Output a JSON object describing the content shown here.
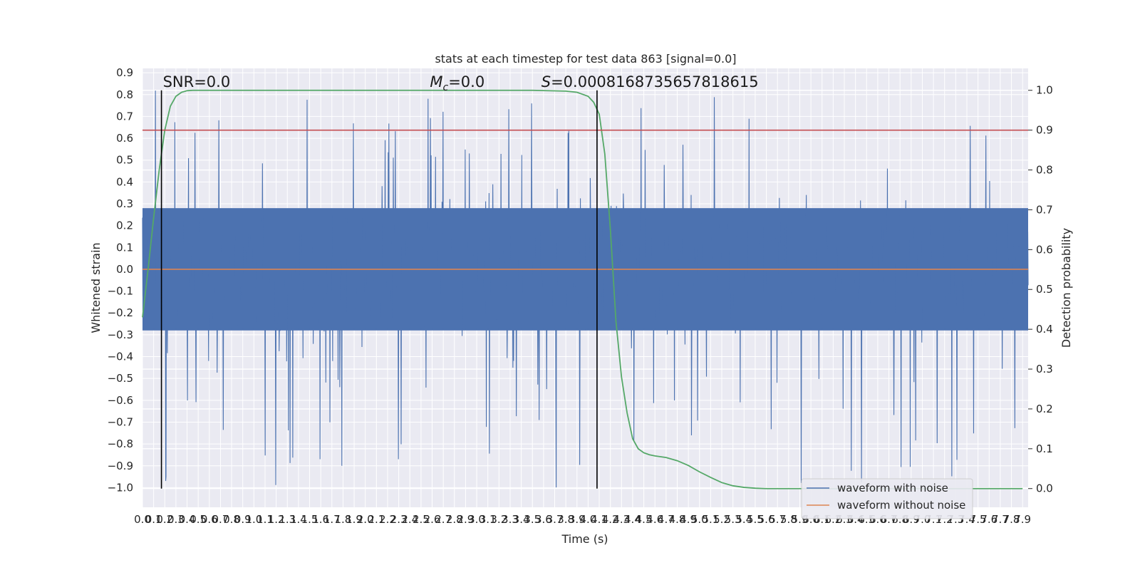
{
  "chart_data": {
    "type": "line",
    "title": "stats at each timestep for test data 863 [signal=0.0]",
    "xlabel": "Time (s)",
    "ylabel": "Whitened strain",
    "ylabel_right": "Detection probability",
    "xlim": [
      0.0,
      7.95
    ],
    "ylim": [
      -1.09,
      0.92
    ],
    "ylim_right": [
      -0.047,
      1.055
    ],
    "x_tick_step": 0.1,
    "x_tick_max": 7.9,
    "y_ticks": [
      -1.0,
      -0.9,
      -0.8,
      -0.7,
      -0.6,
      -0.5,
      -0.4,
      -0.3,
      -0.2,
      -0.1,
      0.0,
      0.1,
      0.2,
      0.3,
      0.4,
      0.5,
      0.6,
      0.7,
      0.8,
      0.9
    ],
    "y_ticks_right": [
      0.0,
      0.1,
      0.2,
      0.3,
      0.4,
      0.5,
      0.6,
      0.7,
      0.8,
      0.9,
      1.0
    ],
    "grid": true,
    "legend_position": "lower-right",
    "annotations": [
      {
        "label": "SNR=0.0",
        "x": 0.17
      },
      {
        "label": "M_c=0.0",
        "x": 2.58
      },
      {
        "label": "S=0.0008168735657818615",
        "x": 3.58
      }
    ],
    "vlines": [
      0.17,
      4.08
    ],
    "threshold_right": 0.9,
    "series": [
      {
        "name": "waveform with noise",
        "color": "#4c72b0",
        "envelope_typical": 0.28,
        "spike_max": 0.83,
        "spike_min": -1.0
      },
      {
        "name": "waveform without noise",
        "color": "#dd8452",
        "value": 0.0
      },
      {
        "color": "#55a868",
        "axis": "right",
        "x": [
          0.0,
          0.05,
          0.1,
          0.15,
          0.2,
          0.25,
          0.3,
          0.35,
          0.4,
          0.45,
          0.5,
          0.6,
          0.8,
          1.0,
          2.0,
          3.0,
          3.5,
          3.8,
          3.9,
          3.95,
          4.0,
          4.05,
          4.1,
          4.15,
          4.2,
          4.25,
          4.3,
          4.35,
          4.4,
          4.45,
          4.5,
          4.55,
          4.6,
          4.7,
          4.8,
          4.9,
          5.0,
          5.1,
          5.2,
          5.3,
          5.4,
          5.5,
          5.6,
          5.8,
          6.0,
          7.0,
          7.9
        ],
        "y": [
          0.43,
          0.55,
          0.68,
          0.8,
          0.9,
          0.96,
          0.985,
          0.995,
          0.999,
          1.0,
          1.0,
          1.0,
          1.0,
          1.0,
          1.0,
          1.0,
          1.0,
          0.998,
          0.995,
          0.99,
          0.985,
          0.97,
          0.94,
          0.84,
          0.65,
          0.42,
          0.28,
          0.19,
          0.125,
          0.1,
          0.09,
          0.085,
          0.082,
          0.078,
          0.07,
          0.058,
          0.042,
          0.028,
          0.015,
          0.007,
          0.003,
          0.001,
          0.0,
          0.0,
          0.0,
          0.0,
          0.0
        ]
      }
    ]
  }
}
